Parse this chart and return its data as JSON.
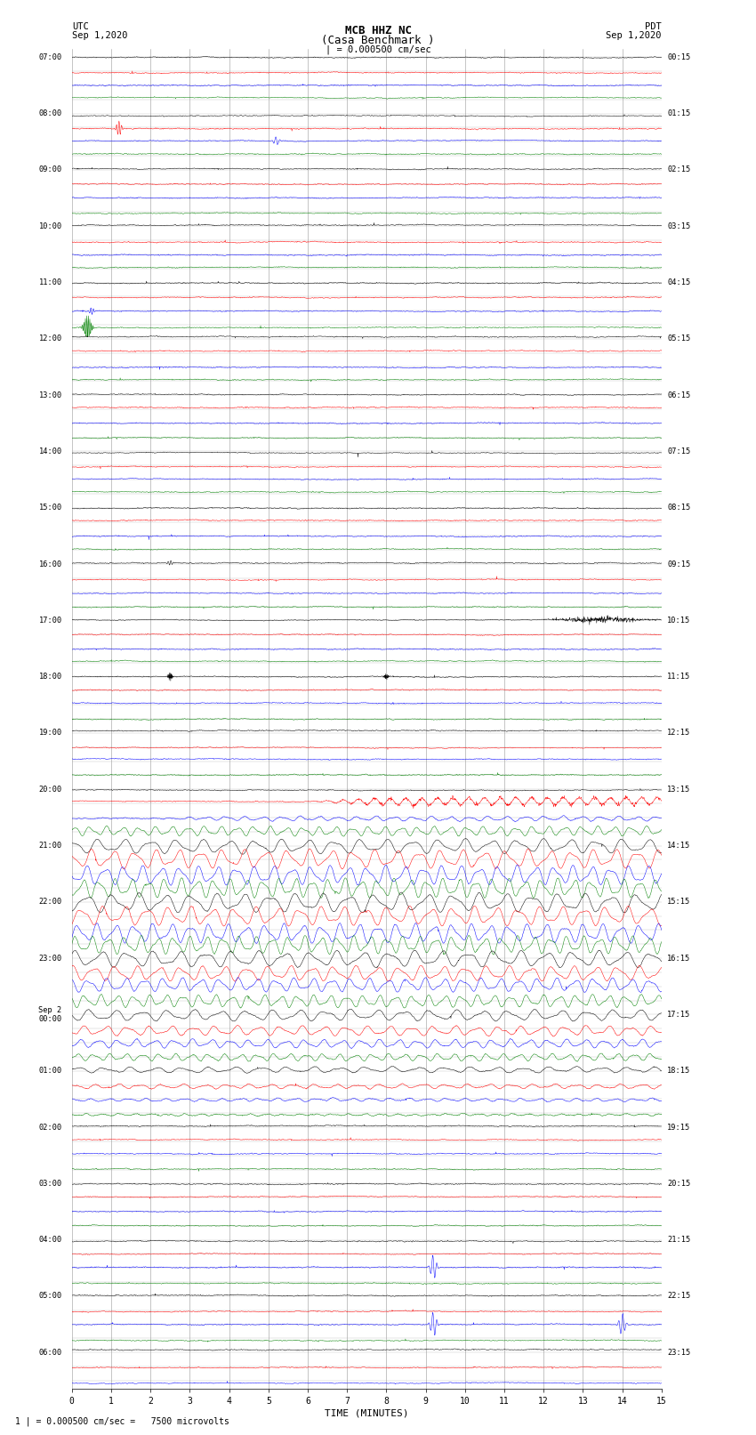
{
  "title_line1": "MCB HHZ NC",
  "title_line2": "(Casa Benchmark )",
  "scale_label": "| = 0.000500 cm/sec",
  "left_header_line1": "UTC",
  "left_header_line2": "Sep 1,2020",
  "right_header_line1": "PDT",
  "right_header_line2": "Sep 1,2020",
  "bottom_label": "TIME (MINUTES)",
  "bottom_note": "1 | = 0.000500 cm/sec =   7500 microvolts",
  "num_cols": 15,
  "colors": [
    "black",
    "red",
    "blue",
    "green"
  ],
  "bg_color": "white",
  "grid_color": "#999999",
  "fig_width": 8.5,
  "fig_height": 16.13,
  "left_times": [
    "07:00",
    "",
    "",
    "",
    "08:00",
    "",
    "",
    "",
    "09:00",
    "",
    "",
    "",
    "10:00",
    "",
    "",
    "",
    "11:00",
    "",
    "",
    "",
    "12:00",
    "",
    "",
    "",
    "13:00",
    "",
    "",
    "",
    "14:00",
    "",
    "",
    "",
    "15:00",
    "",
    "",
    "",
    "16:00",
    "",
    "",
    "",
    "17:00",
    "",
    "",
    "",
    "18:00",
    "",
    "",
    "",
    "19:00",
    "",
    "",
    "",
    "20:00",
    "",
    "",
    "",
    "21:00",
    "",
    "",
    "",
    "22:00",
    "",
    "",
    "",
    "23:00",
    "",
    "",
    "",
    "Sep 2\n00:00",
    "",
    "",
    "",
    "01:00",
    "",
    "",
    "",
    "02:00",
    "",
    "",
    "",
    "03:00",
    "",
    "",
    "",
    "04:00",
    "",
    "",
    "",
    "05:00",
    "",
    "",
    "",
    "06:00",
    "",
    ""
  ],
  "right_times": [
    "00:15",
    "",
    "",
    "",
    "01:15",
    "",
    "",
    "",
    "02:15",
    "",
    "",
    "",
    "03:15",
    "",
    "",
    "",
    "04:15",
    "",
    "",
    "",
    "05:15",
    "",
    "",
    "",
    "06:15",
    "",
    "",
    "",
    "07:15",
    "",
    "",
    "",
    "08:15",
    "",
    "",
    "",
    "09:15",
    "",
    "",
    "",
    "10:15",
    "",
    "",
    "",
    "11:15",
    "",
    "",
    "",
    "12:15",
    "",
    "",
    "",
    "13:15",
    "",
    "",
    "",
    "14:15",
    "",
    "",
    "",
    "15:15",
    "",
    "",
    "",
    "16:15",
    "",
    "",
    "",
    "17:15",
    "",
    "",
    "",
    "18:15",
    "",
    "",
    "",
    "19:15",
    "",
    "",
    "",
    "20:15",
    "",
    "",
    "",
    "21:15",
    "",
    "",
    "",
    "22:15",
    "",
    "",
    "",
    "23:15",
    "",
    ""
  ]
}
